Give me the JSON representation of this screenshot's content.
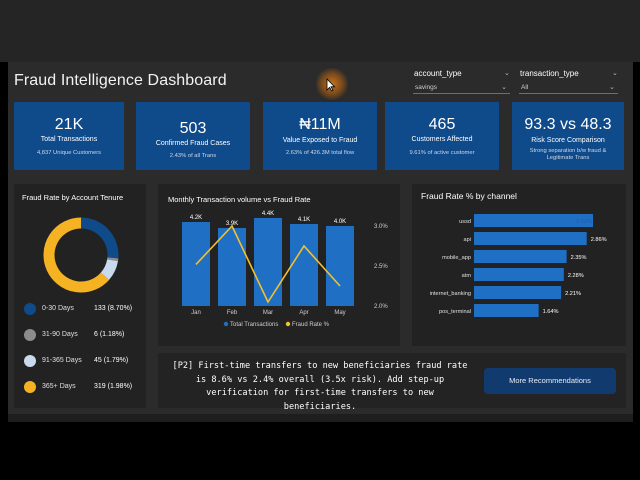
{
  "dashboard": {
    "title_light": "Fraud Intelligence",
    "title_bold": "Dashboard"
  },
  "filters": {
    "account_type": {
      "label": "account_type",
      "value": "savings"
    },
    "transaction_type": {
      "label": "transaction_type",
      "value": "All"
    }
  },
  "kpis": [
    {
      "value": "21K",
      "label": "Total Transactions",
      "sub": "4,837 Unique Customers"
    },
    {
      "value": "503",
      "label": "Confirmed Fraud Cases",
      "sub": "2.43% of all Trans"
    },
    {
      "value": "₦11M",
      "label": "Value Exposed to Fraud",
      "sub": "2.63% of 426.3M total flow"
    },
    {
      "value": "465",
      "label": "Customers Affected",
      "sub": "9.61% of active customer"
    },
    {
      "value": "93.3 vs 48.3",
      "label": "Risk Score Comparison",
      "sub1": "Strong separation b/w fraud &",
      "sub2": "Legitimate Trans"
    }
  ],
  "tenure": {
    "title": "Fraud Rate by Account Tenure",
    "items": [
      {
        "name": "0-30 Days",
        "value": "133 (8.70%)",
        "color": "#0f4a8a"
      },
      {
        "name": "31-90 Days",
        "value": "6 (1.18%)",
        "color": "#8c8c8c"
      },
      {
        "name": "91-365 Days",
        "value": "45 (1.79%)",
        "color": "#c9d9ee"
      },
      {
        "name": "365+ Days",
        "value": "319 (1.98%)",
        "color": "#f5b323"
      }
    ]
  },
  "chart_data": [
    {
      "type": "pie",
      "title": "Fraud Rate by Account Tenure",
      "categories": [
        "0-30 Days",
        "31-90 Days",
        "91-365 Days",
        "365+ Days"
      ],
      "values": [
        133,
        6,
        45,
        319
      ]
    },
    {
      "type": "bar",
      "title": "Monthly Transaction volume vs Fraud Rate",
      "categories": [
        "Jan",
        "Feb",
        "Mar",
        "Apr",
        "May"
      ],
      "series": [
        {
          "name": "Total Transactions",
          "values": [
            4200,
            3900,
            4400,
            4100,
            4000
          ],
          "labels": [
            "4.2K",
            "3.9K",
            "4.4K",
            "4.1K",
            "4.0K"
          ],
          "color": "#1f6fc5"
        },
        {
          "name": "Fraud Rate %",
          "values": [
            2.52,
            3.0,
            2.05,
            2.75,
            2.25
          ],
          "color": "#f2c12e"
        }
      ],
      "y2_ticks": [
        "3.0%",
        "2.5%",
        "2.0%"
      ],
      "y2lim": [
        2.0,
        3.0
      ]
    },
    {
      "type": "bar",
      "title": "Fraud Rate % by channel",
      "categories": [
        "ussd",
        "api",
        "mobile_app",
        "atm",
        "internet_banking",
        "pos_terminal"
      ],
      "values": [
        3.02,
        2.86,
        2.35,
        2.28,
        2.21,
        1.64
      ],
      "labels": [
        "3.02%",
        "2.86%",
        "2.35%",
        "2.28%",
        "2.21%",
        "1.64%"
      ]
    }
  ],
  "recommendation": {
    "text": "[P2] First-time transfers to new beneficiaries fraud rate is 8.6% vs 2.4% overall (3.5x risk). Add step-up verification for first-time transfers to new beneficiaries.",
    "button": "More Recommendations"
  }
}
